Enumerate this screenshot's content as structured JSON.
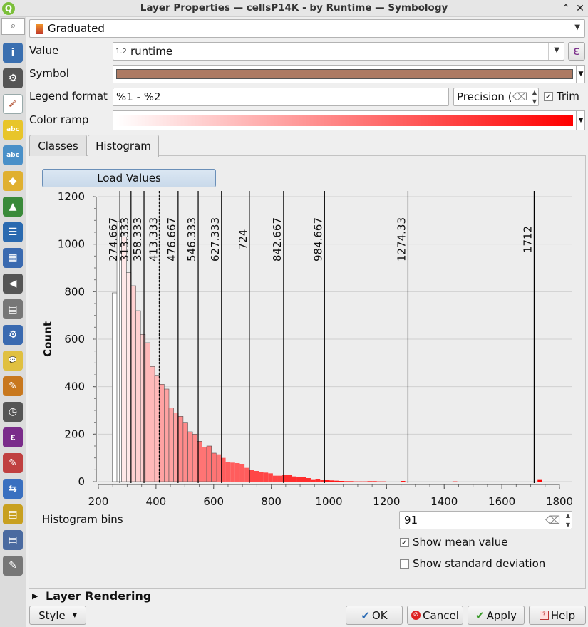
{
  "window": {
    "title": "Layer Properties — cellsP14K - by Runtime — Symbology"
  },
  "renderer": {
    "type": "Graduated"
  },
  "value": {
    "label": "Value",
    "type_badge": "1.2",
    "field": "runtime",
    "expr_icon": "ε"
  },
  "symbol": {
    "label": "Symbol",
    "color": "#ad7a63"
  },
  "legend": {
    "label": "Legend format",
    "format": "%1 - %2",
    "precision_label": "Precision (",
    "trim_label": "Trim",
    "trim_checked": true
  },
  "ramp": {
    "label": "Color ramp",
    "start": "#ffffff",
    "end": "#ff0000"
  },
  "tabs": [
    {
      "label": "Classes",
      "active": false
    },
    {
      "label": "Histogram",
      "active": true
    }
  ],
  "load_values": "Load Values",
  "histogram_bins": {
    "label": "Histogram bins",
    "value": "91"
  },
  "show_mean": {
    "label": "Show mean value",
    "checked": true
  },
  "show_std": {
    "label": "Show standard deviation",
    "checked": false
  },
  "layer_rendering": "Layer Rendering",
  "buttons": {
    "style": "Style",
    "ok": "OK",
    "cancel": "Cancel",
    "apply": "Apply",
    "help": "Help"
  },
  "sidebar_icons": [
    "information-icon",
    "source-icon",
    "symbology-icon",
    "labels-icon",
    "masks-icon",
    "3d-view-icon",
    "diagrams-icon",
    "fields-icon",
    "attributes-form-icon",
    "joins-icon",
    "auxiliary-storage-icon",
    "actions-icon",
    "display-icon",
    "rendering-icon",
    "temporal-icon",
    "variables-icon",
    "metadata-icon",
    "dependencies-icon",
    "legend-icon",
    "server-icon",
    "digitizing-icon"
  ],
  "chart_data": {
    "type": "bar",
    "ylabel": "Count",
    "xlabel": "",
    "xlim": [
      200,
      1800
    ],
    "ylim": [
      0,
      1200
    ],
    "xticks": [
      200,
      400,
      600,
      800,
      1000,
      1200,
      1400,
      1600,
      1800
    ],
    "yticks": [
      0,
      200,
      400,
      600,
      800,
      1000,
      1200
    ],
    "bin_start": 248,
    "bin_width": 16.4,
    "counts": [
      795,
      1095,
      1030,
      880,
      825,
      720,
      620,
      585,
      485,
      445,
      410,
      390,
      310,
      290,
      275,
      250,
      210,
      200,
      170,
      145,
      150,
      120,
      115,
      100,
      82,
      80,
      78,
      75,
      58,
      50,
      45,
      40,
      38,
      35,
      25,
      25,
      30,
      28,
      22,
      18,
      20,
      15,
      10,
      12,
      8,
      6,
      5,
      4,
      3,
      2,
      2,
      1,
      1,
      1,
      2,
      2,
      1,
      1,
      0,
      0,
      0,
      3,
      0,
      0,
      0,
      0,
      0,
      0,
      0,
      0,
      0,
      0,
      1,
      0,
      0,
      0,
      0,
      0,
      0,
      0,
      0,
      0,
      0,
      0,
      0,
      0,
      0,
      0,
      0,
      0,
      10
    ],
    "breaks": [
      "274.667",
      "313.333",
      "358.333",
      "413.333",
      "476.667",
      "546.333",
      "627.333",
      "724",
      "842.667",
      "984.667",
      "1274.33",
      "1712"
    ],
    "mean": 411
  }
}
